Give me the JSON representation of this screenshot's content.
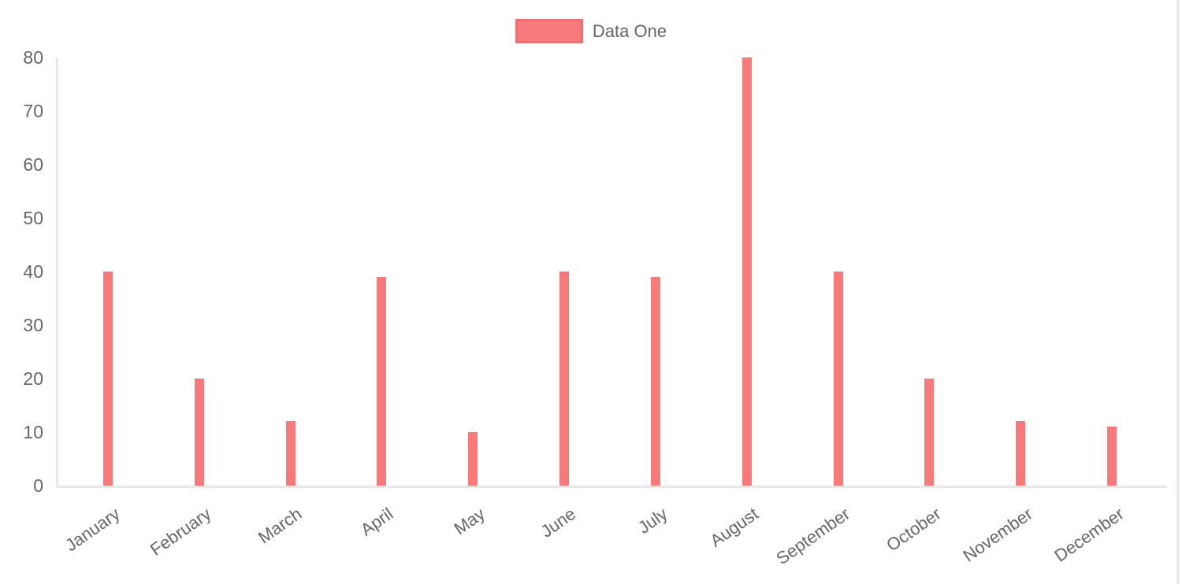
{
  "legend": {
    "label": "Data One"
  },
  "colors": {
    "bar": "#f87979",
    "axis_line": "#e8e8e8",
    "tick_text": "#666666",
    "legend_text": "#666666"
  },
  "chart_data": {
    "type": "bar",
    "title": "",
    "xlabel": "",
    "ylabel": "",
    "categories": [
      "January",
      "February",
      "March",
      "April",
      "May",
      "June",
      "July",
      "August",
      "September",
      "October",
      "November",
      "December"
    ],
    "series": [
      {
        "name": "Data One",
        "color": "#f87979",
        "values": [
          40,
          20,
          12,
          39,
          10,
          40,
          39,
          80,
          40,
          20,
          12,
          11
        ]
      }
    ],
    "ylim": [
      0,
      80
    ],
    "yticks": [
      0,
      10,
      20,
      30,
      40,
      50,
      60,
      70,
      80
    ],
    "grid": false,
    "legend_position": "top",
    "x_label_rotation_deg": -35
  }
}
